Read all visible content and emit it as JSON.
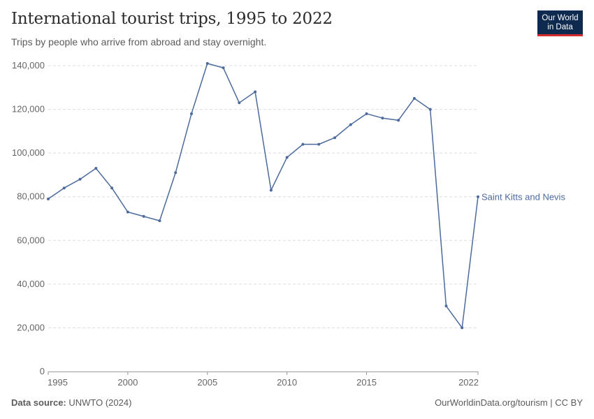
{
  "title": "International tourist trips, 1995 to 2022",
  "subtitle": "Trips by people who arrive from abroad and stay overnight.",
  "logo": {
    "line1": "Our World",
    "line2": "in Data"
  },
  "footer": {
    "source_label": "Data source:",
    "source_value": "UNWTO (2024)",
    "attribution": "OurWorldinData.org/tourism | CC BY"
  },
  "colors": {
    "series": "#4c6a9c",
    "grid": "#dddddd",
    "axis": "#999999",
    "text": "#666666"
  },
  "chart_data": {
    "type": "line",
    "title": "International tourist trips, 1995 to 2022",
    "xlabel": "",
    "ylabel": "",
    "xlim": [
      1995,
      2022
    ],
    "ylim": [
      0,
      140000
    ],
    "grid": "horizontal-dashed",
    "legend_placement": "right end of line",
    "y_ticks": [
      0,
      20000,
      40000,
      60000,
      80000,
      100000,
      120000,
      140000
    ],
    "y_tick_labels": [
      "0",
      "20,000",
      "40,000",
      "60,000",
      "80,000",
      "100,000",
      "120,000",
      "140,000"
    ],
    "x_ticks": [
      1995,
      2000,
      2005,
      2010,
      2015,
      2022
    ],
    "x_tick_labels": [
      "1995",
      "2000",
      "2005",
      "2010",
      "2015",
      "2022"
    ],
    "series": [
      {
        "name": "Saint Kitts and Nevis",
        "x": [
          1995,
          1996,
          1997,
          1998,
          1999,
          2000,
          2001,
          2002,
          2003,
          2004,
          2005,
          2006,
          2007,
          2008,
          2009,
          2010,
          2011,
          2012,
          2013,
          2014,
          2015,
          2016,
          2017,
          2018,
          2019,
          2020,
          2021,
          2022
        ],
        "y": [
          79000,
          84000,
          88000,
          93000,
          84000,
          73000,
          71000,
          69000,
          91000,
          118000,
          141000,
          139000,
          123000,
          128000,
          83000,
          98000,
          104000,
          104000,
          107000,
          113000,
          118000,
          116000,
          115000,
          125000,
          120000,
          30000,
          20000,
          80000
        ]
      }
    ]
  }
}
